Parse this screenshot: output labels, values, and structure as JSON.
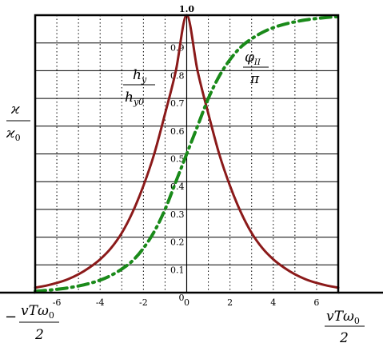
{
  "chart_data": {
    "type": "line",
    "title": "",
    "x_ticks": [
      -6,
      -4,
      -2,
      0,
      2,
      4,
      6
    ],
    "y_ticks": [
      "1.0",
      "0.9",
      "0.8",
      "0.7",
      "0.6",
      "0.5",
      "0.4",
      "0.3",
      "0.2",
      "0.1",
      "0"
    ],
    "y_tick_values": [
      1.0,
      0.9,
      0.8,
      0.7,
      0.6,
      0.5,
      0.4,
      0.3,
      0.2,
      0.1,
      0
    ],
    "xlim": [
      -7,
      7
    ],
    "ylim": [
      0,
      1
    ],
    "grid": true,
    "y_axis_label": {
      "num": "ϰ",
      "den": "ϰ",
      "den_sub": "0"
    },
    "x_left_label": {
      "sign": "−",
      "num": "vTω",
      "num_sub": "0",
      "den": "2"
    },
    "x_right_label": {
      "num": "vTω",
      "num_sub": "0",
      "den": "2"
    },
    "series": [
      {
        "label": {
          "num": "h",
          "num_sub": "y",
          "den": "h",
          "den_sub": "y0"
        },
        "color": "#8b1a1a",
        "style": "solid",
        "x": [
          -7,
          -6.5,
          -6,
          -5.5,
          -5,
          -4.5,
          -4,
          -3.5,
          -3,
          -2.5,
          -2,
          -1.5,
          -1,
          -0.5,
          0,
          0.5,
          1,
          1.5,
          2,
          2.5,
          3,
          3.5,
          4,
          4.5,
          5,
          5.5,
          6,
          6.5,
          7
        ],
        "y": [
          0.018,
          0.025,
          0.035,
          0.048,
          0.066,
          0.09,
          0.12,
          0.16,
          0.215,
          0.29,
          0.385,
          0.5,
          0.645,
          0.8,
          1.0,
          0.8,
          0.645,
          0.5,
          0.385,
          0.29,
          0.215,
          0.16,
          0.12,
          0.09,
          0.066,
          0.048,
          0.035,
          0.025,
          0.018
        ]
      },
      {
        "label": {
          "num": "φ",
          "num_sub": "II",
          "den": "π"
        },
        "color": "#1a8a1a",
        "style": "dashdot",
        "x": [
          -7,
          -6.5,
          -6,
          -5.5,
          -5,
          -4.5,
          -4,
          -3.5,
          -3,
          -2.5,
          -2,
          -1.5,
          -1,
          -0.5,
          0,
          0.5,
          1,
          1.5,
          2,
          2.5,
          3,
          3.5,
          4,
          4.5,
          5,
          5.5,
          6,
          6.5,
          7
        ],
        "y": [
          0.005,
          0.008,
          0.012,
          0.017,
          0.024,
          0.033,
          0.045,
          0.062,
          0.085,
          0.115,
          0.16,
          0.22,
          0.3,
          0.4,
          0.5,
          0.6,
          0.7,
          0.78,
          0.84,
          0.885,
          0.915,
          0.938,
          0.955,
          0.967,
          0.976,
          0.983,
          0.988,
          0.992,
          0.995
        ]
      }
    ]
  }
}
